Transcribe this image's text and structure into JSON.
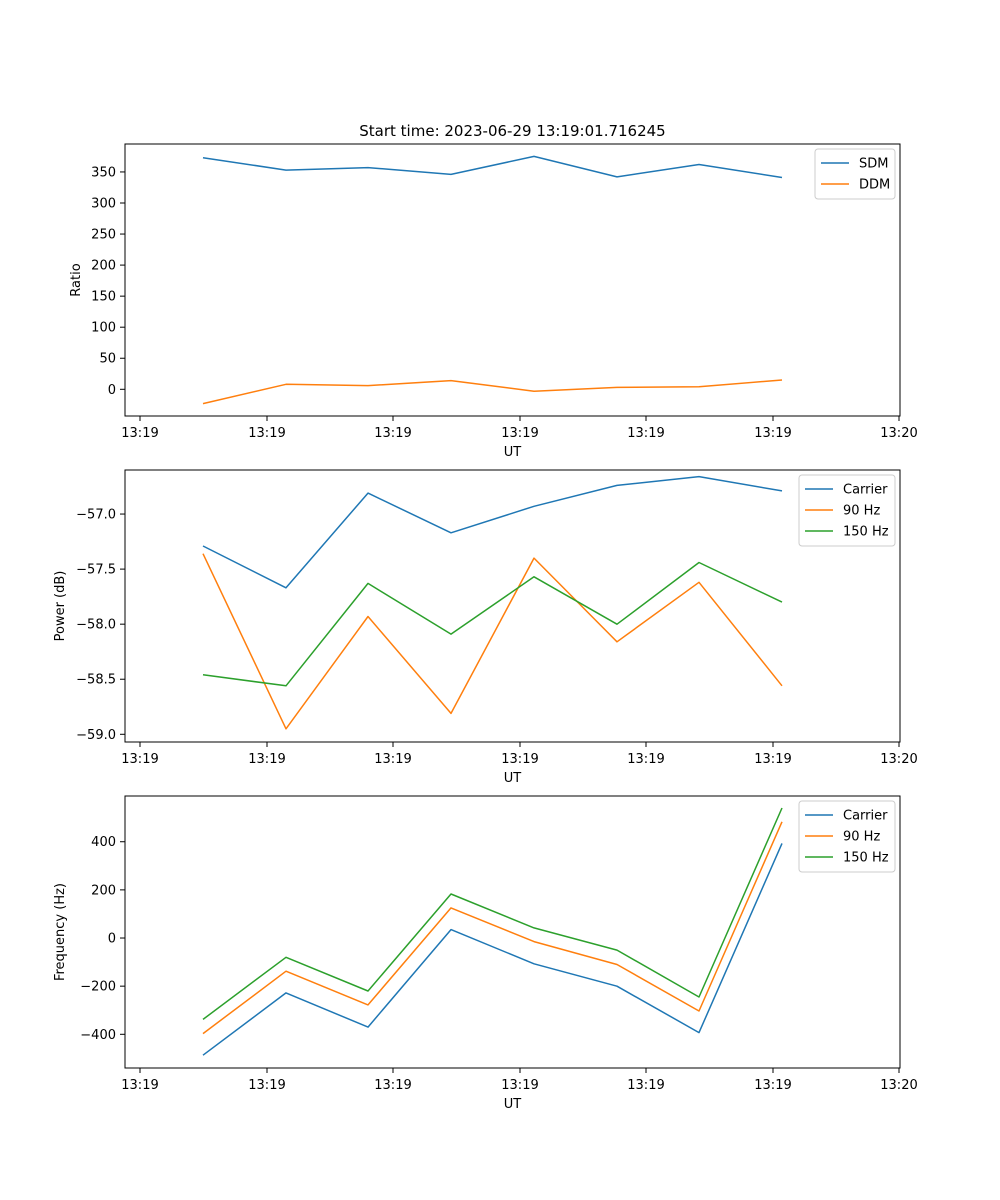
{
  "chart_data": [
    {
      "type": "line",
      "title": "Start time: 2023-06-29 13:19:01.716245",
      "xlabel": "UT",
      "ylabel": "Ratio",
      "x_tick_labels": [
        "13:19",
        "13:19",
        "13:19",
        "13:19",
        "13:19",
        "13:19",
        "13:19",
        "13:20"
      ],
      "ylim": [
        -43,
        395
      ],
      "yticks": [
        0,
        50,
        100,
        150,
        200,
        250,
        300,
        350
      ],
      "y_tick_labels": [
        "0",
        "50",
        "100",
        "150",
        "200",
        "250",
        "300",
        "350"
      ],
      "grid": false,
      "legend_position": "top-right",
      "series": [
        {
          "name": "SDM",
          "color": "#1f77b4",
          "values": [
            373,
            353,
            357,
            346,
            375,
            342,
            362,
            341
          ]
        },
        {
          "name": "DDM",
          "color": "#ff7f0e",
          "values": [
            -23,
            8,
            6,
            14,
            -3,
            3,
            4,
            15
          ]
        }
      ]
    },
    {
      "type": "line",
      "title": "",
      "xlabel": "UT",
      "ylabel": "Power (dB)",
      "x_tick_labels": [
        "13:19",
        "13:19",
        "13:19",
        "13:19",
        "13:19",
        "13:19",
        "13:19",
        "13:20"
      ],
      "ylim": [
        -59.07,
        -56.6
      ],
      "yticks": [
        -59.0,
        -58.5,
        -58.0,
        -57.5,
        -57.0
      ],
      "y_tick_labels": [
        "−59.0",
        "−58.5",
        "−58.0",
        "−57.5",
        "−57.0"
      ],
      "grid": false,
      "legend_position": "top-right",
      "series": [
        {
          "name": "Carrier",
          "color": "#1f77b4",
          "values": [
            -57.29,
            -57.67,
            -56.81,
            -57.17,
            -56.93,
            -56.74,
            -56.66,
            -56.79
          ]
        },
        {
          "name": "90 Hz",
          "color": "#ff7f0e",
          "values": [
            -57.36,
            -58.95,
            -57.93,
            -58.81,
            -57.4,
            -58.16,
            -57.62,
            -58.56
          ]
        },
        {
          "name": "150 Hz",
          "color": "#2ca02c",
          "values": [
            -58.46,
            -58.56,
            -57.63,
            -58.09,
            -57.57,
            -58.0,
            -57.44,
            -57.8
          ]
        }
      ]
    },
    {
      "type": "line",
      "title": "",
      "xlabel": "UT",
      "ylabel": "Frequency (Hz)",
      "x_tick_labels": [
        "13:19",
        "13:19",
        "13:19",
        "13:19",
        "13:19",
        "13:19",
        "13:19",
        "13:20"
      ],
      "ylim": [
        -540,
        590
      ],
      "yticks": [
        -400,
        -200,
        0,
        200,
        400
      ],
      "y_tick_labels": [
        "−400",
        "−200",
        "0",
        "200",
        "400"
      ],
      "grid": false,
      "legend_position": "top-right",
      "series": [
        {
          "name": "Carrier",
          "color": "#1f77b4",
          "values": [
            -487,
            -228,
            -370,
            35,
            -107,
            -200,
            -393,
            393
          ]
        },
        {
          "name": "90 Hz",
          "color": "#ff7f0e",
          "values": [
            -397,
            -138,
            -278,
            125,
            -15,
            -110,
            -303,
            483
          ]
        },
        {
          "name": "150 Hz",
          "color": "#2ca02c",
          "values": [
            -338,
            -80,
            -220,
            183,
            42,
            -50,
            -245,
            540
          ]
        }
      ]
    }
  ]
}
